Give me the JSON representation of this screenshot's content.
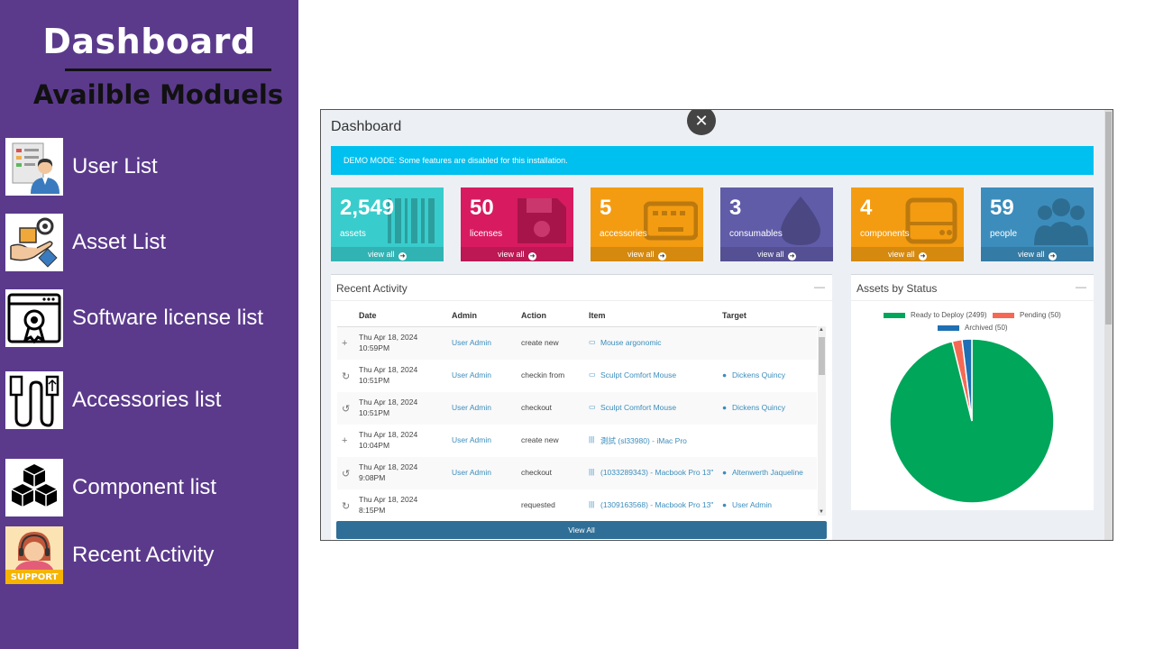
{
  "sidebar": {
    "title": "Dashboard",
    "subtitle": "Availble Moduels",
    "modules": [
      {
        "label": "User List",
        "icon": "user-list-icon"
      },
      {
        "label": "Asset List",
        "icon": "asset-hand-icon"
      },
      {
        "label": "Software license list",
        "icon": "license-badge-icon"
      },
      {
        "label": "Accessories list",
        "icon": "usb-cable-icon"
      },
      {
        "label": "Component list",
        "icon": "cubes-icon"
      },
      {
        "label": "Recent Activity",
        "icon": "support-agent-icon",
        "icon_text": "SUPPORT"
      }
    ]
  },
  "app": {
    "title": "Dashboard",
    "close_label": "✕",
    "demo_notice": "DEMO MODE: Some features are disabled for this installation.",
    "stat_boxes": [
      {
        "value": "2,549",
        "label": "assets",
        "link": "view all",
        "color": "#39cccc",
        "icon": "barcode-icon"
      },
      {
        "value": "50",
        "label": "licenses",
        "link": "view all",
        "color": "#d81b60",
        "icon": "floppy-disk-icon"
      },
      {
        "value": "5",
        "label": "accessories",
        "link": "view all",
        "color": "#f39c12",
        "icon": "keyboard-icon"
      },
      {
        "value": "3",
        "label": "consumables",
        "link": "view all",
        "color": "#605ca8",
        "icon": "drop-icon"
      },
      {
        "value": "4",
        "label": "components",
        "link": "view all",
        "color": "#f39c12",
        "icon": "hard-drive-icon"
      },
      {
        "value": "59",
        "label": "people",
        "link": "view all",
        "color": "#3c8dbc",
        "icon": "users-icon"
      }
    ],
    "recent_activity": {
      "title": "Recent Activity",
      "minimize": "—",
      "columns": [
        "Date",
        "Admin",
        "Action",
        "Item",
        "Target"
      ],
      "rows": [
        {
          "icon": "+",
          "date": "Thu Apr 18, 2024",
          "time": "10:59PM",
          "admin": "User Admin",
          "action": "create new",
          "item_icon": "▭",
          "item": "Mouse argonomic",
          "target": ""
        },
        {
          "icon": "↻",
          "date": "Thu Apr 18, 2024",
          "time": "10:51PM",
          "admin": "User Admin",
          "action": "checkin from",
          "item_icon": "▭",
          "item": "Sculpt Comfort Mouse",
          "target": "Dickens Quincy"
        },
        {
          "icon": "↺",
          "date": "Thu Apr 18, 2024",
          "time": "10:51PM",
          "admin": "User Admin",
          "action": "checkout",
          "item_icon": "▭",
          "item": "Sculpt Comfort Mouse",
          "target": "Dickens Quincy"
        },
        {
          "icon": "+",
          "date": "Thu Apr 18, 2024",
          "time": "10:04PM",
          "admin": "User Admin",
          "action": "create new",
          "item_icon": "|||",
          "item": "測試 (sl33980) - iMac Pro",
          "target": ""
        },
        {
          "icon": "↺",
          "date": "Thu Apr 18, 2024",
          "time": "9:08PM",
          "admin": "User Admin",
          "action": "checkout",
          "item_icon": "|||",
          "item": "(1033289343) - Macbook Pro 13\"",
          "target": "Altenwerth Jaqueline"
        },
        {
          "icon": "↻",
          "date": "Thu Apr 18, 2024",
          "time": "8:15PM",
          "admin": "",
          "action": "requested",
          "item_icon": "|||",
          "item": "(1309163568) - Macbook Pro 13\"",
          "target": "User Admin"
        }
      ],
      "view_all": "View All"
    },
    "assets_by_status": {
      "title": "Assets by Status",
      "minimize": "—"
    }
  },
  "chart_data": {
    "type": "pie",
    "title": "",
    "legend_position": "top",
    "slices": [
      {
        "name": "Ready to Deploy (2499)",
        "value": 2499,
        "color": "#00a65a"
      },
      {
        "name": "Pending (50)",
        "value": 50,
        "color": "#f56954"
      },
      {
        "name": "Archived (50)",
        "value": 50,
        "color": "#1e6fb3"
      }
    ]
  }
}
